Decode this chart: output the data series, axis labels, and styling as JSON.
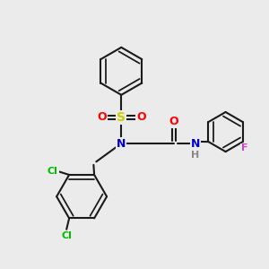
{
  "bg_color": "#ebebeb",
  "line_color": "#1a1a1a",
  "bond_width": 1.5,
  "atom_colors": {
    "S": "#cccc00",
    "O": "#ff0000",
    "N": "#0000cc",
    "Cl": "#00bb00",
    "F": "#cc44cc",
    "H": "#888888",
    "C": "#1a1a1a"
  },
  "font_size": 9
}
